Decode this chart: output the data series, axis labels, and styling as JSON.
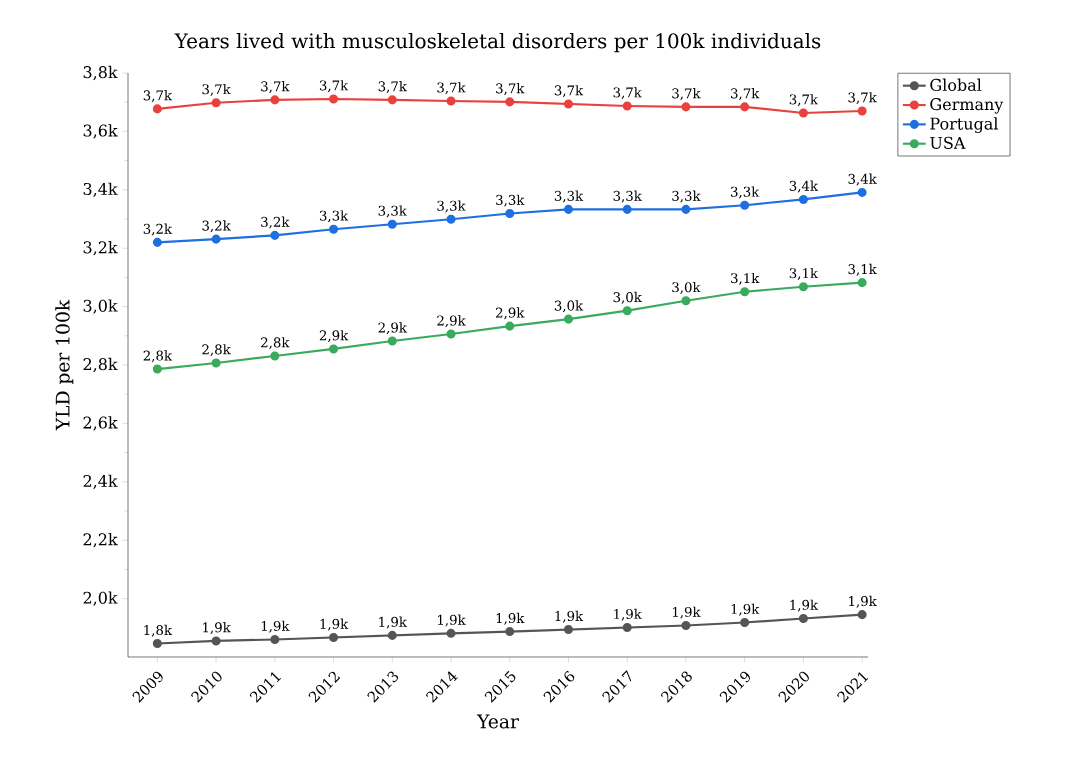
{
  "chart_data": {
    "type": "line",
    "title": "Years lived with musculoskeletal disorders per 100k individuals",
    "xlabel": "Year",
    "ylabel": "YLD per 100k",
    "x": [
      2009,
      2010,
      2011,
      2012,
      2013,
      2014,
      2015,
      2016,
      2017,
      2018,
      2019,
      2020,
      2021
    ],
    "series": [
      {
        "name": "Global",
        "color": "#555555",
        "values": [
          1846,
          1855,
          1860,
          1867,
          1874,
          1881,
          1887,
          1894,
          1901,
          1908,
          1918,
          1932,
          1945
        ],
        "value_labels": [
          "1,8k",
          "1,9k",
          "1,9k",
          "1,9k",
          "1,9k",
          "1,9k",
          "1,9k",
          "1,9k",
          "1,9k",
          "1,9k",
          "1,9k",
          "1,9k",
          "1,9k"
        ]
      },
      {
        "name": "Germany",
        "color": "#e8413e",
        "values": [
          3677,
          3698,
          3708,
          3711,
          3708,
          3704,
          3701,
          3694,
          3687,
          3684,
          3684,
          3663,
          3670
        ],
        "value_labels": [
          "3,7k",
          "3,7k",
          "3,7k",
          "3,7k",
          "3,7k",
          "3,7k",
          "3,7k",
          "3,7k",
          "3,7k",
          "3,7k",
          "3,7k",
          "3,7k",
          "3,7k"
        ]
      },
      {
        "name": "Portugal",
        "color": "#1f6fe0",
        "values": [
          3220,
          3231,
          3244,
          3265,
          3282,
          3299,
          3319,
          3333,
          3333,
          3333,
          3347,
          3367,
          3391
        ],
        "value_labels": [
          "3,2k",
          "3,2k",
          "3,2k",
          "3,3k",
          "3,3k",
          "3,3k",
          "3,3k",
          "3,3k",
          "3,3k",
          "3,3k",
          "3,3k",
          "3,4k",
          "3,4k"
        ]
      },
      {
        "name": "USA",
        "color": "#3aaa5e",
        "values": [
          2786,
          2807,
          2831,
          2855,
          2882,
          2906,
          2933,
          2957,
          2986,
          3020,
          3051,
          3068,
          3082
        ],
        "value_labels": [
          "2,8k",
          "2,8k",
          "2,8k",
          "2,9k",
          "2,9k",
          "2,9k",
          "2,9k",
          "3,0k",
          "3,0k",
          "3,0k",
          "3,1k",
          "3,1k",
          "3,1k"
        ]
      }
    ],
    "xlim": [
      2008.5,
      2021.1
    ],
    "ylim": [
      1800,
      3800
    ],
    "xticks": [
      2009,
      2010,
      2011,
      2012,
      2013,
      2014,
      2015,
      2016,
      2017,
      2018,
      2019,
      2020,
      2021
    ],
    "yticks": [
      {
        "value": 2000,
        "label": "2,0k"
      },
      {
        "value": 2200,
        "label": "2,2k"
      },
      {
        "value": 2400,
        "label": "2,4k"
      },
      {
        "value": 2600,
        "label": "2,6k"
      },
      {
        "value": 2800,
        "label": "2,8k"
      },
      {
        "value": 3000,
        "label": "3,0k"
      },
      {
        "value": 3200,
        "label": "3,2k"
      },
      {
        "value": 3400,
        "label": "3,4k"
      },
      {
        "value": 3600,
        "label": "3,6k"
      },
      {
        "value": 3800,
        "label": "3,8k"
      }
    ],
    "grid": false,
    "legend": "top right",
    "marker": "circle",
    "line_style": "solid"
  }
}
